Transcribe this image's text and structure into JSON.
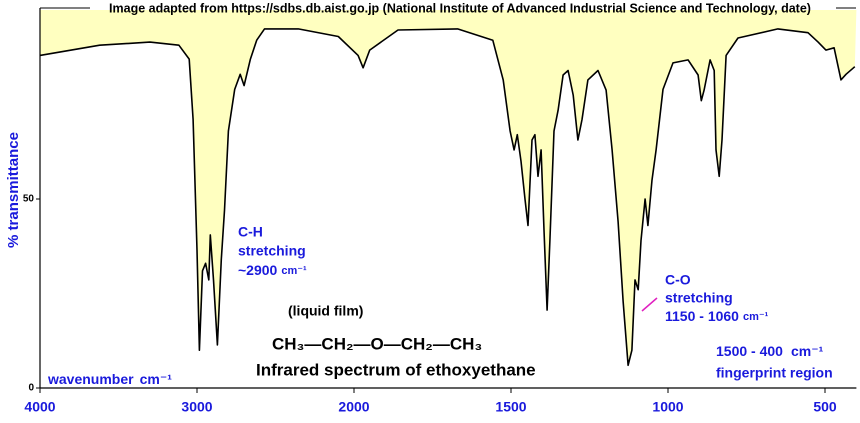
{
  "chart_data": {
    "type": "line",
    "header": "Image adapted from https://sdbs.db.aist.go.jp (National Institute of Advanced Industrial Science and Technology, date)",
    "y_label": "% transmittance",
    "x_label": "wavenumber",
    "x_unit": "cm⁻¹",
    "title": "Infrared spectrum of ethoxyethane",
    "sample": "(liquid film)",
    "formula": "CH₃—CH₂—O—CH₂—CH₃",
    "annotations": [
      {
        "lines": [
          "C-H",
          "stretching",
          "~2900"
        ],
        "unit": "cm⁻¹"
      },
      {
        "lines": [
          "C-O",
          "stretching",
          "1150 - 1060"
        ],
        "unit": "cm⁻¹"
      },
      {
        "lines": [
          "1500 - 400",
          "fingerprint region"
        ],
        "unit": "cm⁻¹"
      }
    ],
    "xlim": [
      4000,
      400
    ],
    "xticks": [
      4000,
      3000,
      2000,
      1500,
      1000,
      500
    ],
    "ylim": [
      0,
      100
    ],
    "yticks": [
      0,
      50
    ],
    "x": [
      4000,
      3620,
      3300,
      3115,
      3050,
      3025,
      3000,
      2985,
      2965,
      2945,
      2925,
      2915,
      2895,
      2870,
      2845,
      2825,
      2800,
      2760,
      2725,
      2700,
      2660,
      2620,
      2570,
      2355,
      2100,
      1987,
      1971,
      1950,
      1860,
      1670,
      1558,
      1525,
      1503,
      1490,
      1480,
      1468,
      1455,
      1446,
      1433,
      1424,
      1414,
      1404,
      1395,
      1385,
      1376,
      1363,
      1350,
      1334,
      1318,
      1302,
      1287,
      1274,
      1255,
      1223,
      1197,
      1178,
      1159,
      1143,
      1127,
      1115,
      1105,
      1095,
      1086,
      1073,
      1064,
      1051,
      1038,
      1016,
      984,
      936,
      904,
      894,
      885,
      866,
      853,
      847,
      837,
      828,
      815,
      777,
      650,
      554,
      522,
      497,
      471,
      449,
      433,
      405
    ],
    "series": [
      {
        "name": "transmittance",
        "color": "#000000",
        "fill": "#ffffc0",
        "values": [
          88,
          90.7,
          91.5,
          90.7,
          87,
          71,
          36.5,
          10,
          31,
          33,
          28.6,
          40.5,
          28.6,
          11.4,
          34,
          47,
          68,
          79,
          83,
          80,
          87,
          92,
          95,
          95,
          93,
          88,
          84.7,
          89.4,
          94.7,
          95,
          92,
          81.5,
          68,
          63,
          67,
          60,
          49.7,
          43,
          65.6,
          67,
          56,
          63,
          41.8,
          20.6,
          39,
          68,
          73.5,
          82.8,
          84,
          77.5,
          65.6,
          71,
          81.5,
          84,
          78.8,
          63,
          44,
          23,
          6,
          10,
          28.6,
          26,
          39,
          50,
          43,
          55,
          63,
          79,
          86,
          86.8,
          82.8,
          76,
          78.8,
          86.8,
          84,
          63,
          56,
          65.6,
          88,
          92.6,
          95,
          94,
          91.5,
          89.4,
          90,
          81.5,
          83,
          85
        ]
      }
    ]
  }
}
